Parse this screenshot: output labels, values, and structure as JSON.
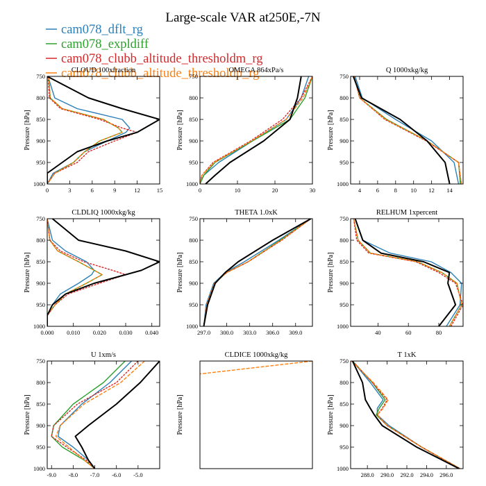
{
  "figure": {
    "title": "Large-scale VAR at250E,-7N",
    "ylabel": "Pressure [hPa]"
  },
  "legend": [
    {
      "name": "cam078_dflt_rg",
      "color": "#2b7fb6"
    },
    {
      "name": "cam078_expldiff",
      "color": "#2ca02c"
    },
    {
      "name": "cam078_clubb_altitude_thresholdm_rg",
      "color": "#d62728"
    },
    {
      "name": "cam078_clubb_altitude_thresholdp_rg",
      "color": "#ff7f0e"
    }
  ],
  "chart_data": [
    {
      "type": "line",
      "title": "CLOUD 100xfraction",
      "ylabel": "Pressure [hPa]",
      "xlim": [
        0,
        15
      ],
      "ylim": [
        750,
        1000
      ],
      "xticks": [
        "0",
        "3",
        "6",
        "9",
        "12",
        "15"
      ],
      "yticks": [
        "750",
        "800",
        "850",
        "900",
        "950",
        "1000"
      ],
      "y": [
        750,
        800,
        825,
        850,
        870,
        880,
        900,
        925,
        950,
        975,
        1000
      ],
      "series": [
        {
          "name": "cam078_dflt_rg",
          "x": [
            0.1,
            1.0,
            4.0,
            10.0,
            11.0,
            10.5,
            8.0,
            5.0,
            3.5,
            0.8,
            0.0
          ]
        },
        {
          "name": "cam078_expldiff",
          "x": [
            0.2,
            0.4,
            2.0,
            7.5,
            9.5,
            10.0,
            7.0,
            5.0,
            3.5,
            1.0,
            0.0
          ]
        },
        {
          "name": "cam078_clubb_altitude_thresholdm_rg",
          "x": [
            0.1,
            0.3,
            1.8,
            7.0,
            10.0,
            12.0,
            9.0,
            5.5,
            4.0,
            1.0,
            0.0
          ]
        },
        {
          "name": "cam078_clubb_altitude_thresholdp_rg",
          "x": [
            0.2,
            0.4,
            2.0,
            7.5,
            9.5,
            10.0,
            7.0,
            5.0,
            3.5,
            1.0,
            0.0
          ]
        },
        {
          "name": "",
          "x": [
            0.0,
            5.5,
            10.0,
            15.0,
            13.0,
            12.0,
            8.0,
            4.0,
            2.0,
            0.0,
            0.0
          ]
        }
      ]
    },
    {
      "type": "line",
      "title": "OMEGA 864xPa/s",
      "ylabel": "Pressure [hPa]",
      "xlim": [
        0,
        30
      ],
      "ylim": [
        750,
        1000
      ],
      "xticks": [
        "0",
        "10",
        "20",
        "30"
      ],
      "yticks": [
        "750",
        "800",
        "850",
        "900",
        "950",
        "1000"
      ],
      "y": [
        750,
        800,
        850,
        900,
        950,
        980,
        1000
      ],
      "series": [
        {
          "name": "cam078_dflt_rg",
          "x": [
            29.0,
            27.0,
            23.0,
            14.0,
            5.0,
            1.0,
            0.0
          ]
        },
        {
          "name": "cam078_expldiff",
          "x": [
            30.0,
            28.0,
            24.0,
            14.0,
            4.0,
            1.0,
            0.0
          ]
        },
        {
          "name": "cam078_clubb_altitude_thresholdm_rg",
          "x": [
            30.0,
            27.0,
            22.0,
            13.5,
            3.5,
            0.5,
            0.0
          ]
        },
        {
          "name": "cam078_clubb_altitude_thresholdp_rg",
          "x": [
            30.0,
            27.5,
            23.0,
            13.8,
            3.8,
            0.5,
            0.0
          ]
        },
        {
          "name": "",
          "x": [
            27.0,
            26.0,
            24.0,
            17.0,
            8.0,
            4.0,
            1.5
          ]
        }
      ]
    },
    {
      "type": "line",
      "title": "Q 1000xkg/kg",
      "ylabel": "Pressure [hPa]",
      "xlim": [
        3,
        15.5
      ],
      "ylim": [
        750,
        1000
      ],
      "xticks": [
        "4",
        "6",
        "8",
        "10",
        "12",
        "14"
      ],
      "yticks": [
        "750",
        "800",
        "850",
        "900",
        "950",
        "1000"
      ],
      "y": [
        750,
        800,
        850,
        900,
        950,
        1000
      ],
      "series": [
        {
          "name": "cam078_dflt_rg",
          "x": [
            3.5,
            4.3,
            8.0,
            12.0,
            14.5,
            15.0
          ]
        },
        {
          "name": "cam078_expldiff",
          "x": [
            3.4,
            4.0,
            7.0,
            11.5,
            15.0,
            15.2
          ]
        },
        {
          "name": "cam078_clubb_altitude_thresholdm_rg",
          "x": [
            3.4,
            4.0,
            6.8,
            11.4,
            15.0,
            15.3
          ]
        },
        {
          "name": "cam078_clubb_altitude_thresholdp_rg",
          "x": [
            3.4,
            4.0,
            6.9,
            11.5,
            15.0,
            15.3
          ]
        },
        {
          "name": "",
          "x": [
            3.3,
            4.2,
            8.5,
            11.5,
            13.5,
            14.0
          ]
        }
      ]
    },
    {
      "type": "line",
      "title": "CLDLIQ 1000xkg/kg",
      "ylabel": "Pressure [hPa]",
      "xlim": [
        0,
        0.043
      ],
      "ylim": [
        750,
        1000
      ],
      "xticks": [
        "0.000",
        "0.010",
        "0.020",
        "0.030",
        "0.040"
      ],
      "yticks": [
        "750",
        "800",
        "850",
        "900",
        "950",
        "1000"
      ],
      "y": [
        750,
        800,
        825,
        850,
        870,
        880,
        900,
        925,
        950,
        975,
        1000
      ],
      "series": [
        {
          "name": "cam078_dflt_rg",
          "x": [
            0.0,
            0.002,
            0.007,
            0.015,
            0.018,
            0.017,
            0.012,
            0.005,
            0.002,
            0.0,
            0.0
          ]
        },
        {
          "name": "cam078_expldiff",
          "x": [
            0.0,
            0.001,
            0.004,
            0.012,
            0.018,
            0.021,
            0.015,
            0.007,
            0.003,
            0.0,
            0.0
          ]
        },
        {
          "name": "cam078_clubb_altitude_thresholdm_rg",
          "x": [
            0.0,
            0.001,
            0.005,
            0.014,
            0.025,
            0.03,
            0.02,
            0.008,
            0.003,
            0.0,
            0.0
          ]
        },
        {
          "name": "cam078_clubb_altitude_thresholdp_rg",
          "x": [
            0.0,
            0.001,
            0.004,
            0.012,
            0.018,
            0.021,
            0.015,
            0.007,
            0.003,
            0.0,
            0.0
          ]
        },
        {
          "name": "",
          "x": [
            0.002,
            0.012,
            0.03,
            0.043,
            0.036,
            0.03,
            0.018,
            0.007,
            0.002,
            0.0,
            0.0
          ]
        }
      ]
    },
    {
      "type": "line",
      "title": "THETA 1.0xK",
      "ylabel": "Pressure [hPa]",
      "xlim": [
        296.5,
        311.2
      ],
      "ylim": [
        750,
        1000
      ],
      "xticks": [
        "297.0",
        "300.0",
        "303.0",
        "306.0",
        "309.0"
      ],
      "yticks": [
        "750",
        "800",
        "850",
        "900",
        "950",
        "1000"
      ],
      "y": [
        750,
        800,
        850,
        875,
        900,
        950,
        1000
      ],
      "series": [
        {
          "name": "cam078_dflt_rg",
          "x": [
            311.0,
            306.8,
            302.3,
            299.8,
            298.3,
            297.3,
            297.0
          ]
        },
        {
          "name": "cam078_expldiff",
          "x": [
            311.0,
            307.0,
            302.8,
            300.0,
            298.4,
            297.4,
            297.0
          ]
        },
        {
          "name": "cam078_clubb_altitude_thresholdm_rg",
          "x": [
            311.0,
            307.2,
            302.8,
            300.0,
            298.4,
            297.4,
            297.0
          ]
        },
        {
          "name": "cam078_clubb_altitude_thresholdp_rg",
          "x": [
            311.0,
            307.1,
            302.8,
            300.0,
            298.4,
            297.4,
            297.0
          ]
        },
        {
          "name": "",
          "x": [
            311.0,
            306.0,
            301.5,
            299.8,
            298.5,
            297.5,
            297.0
          ]
        }
      ]
    },
    {
      "type": "line",
      "title": "RELHUM 1xpercent",
      "ylabel": "Pressure [hPa]",
      "xlim": [
        22,
        96
      ],
      "ylim": [
        750,
        1000
      ],
      "xticks": [
        "40",
        "60",
        "80"
      ],
      "yticks": [
        "750",
        "800",
        "850",
        "900",
        "950",
        "1000"
      ],
      "y": [
        750,
        800,
        830,
        850,
        875,
        900,
        950,
        1000
      ],
      "series": [
        {
          "name": "cam078_dflt_rg",
          "x": [
            25.0,
            30.0,
            48.0,
            75.0,
            88.0,
            95.0,
            94.0,
            85.0
          ]
        },
        {
          "name": "cam078_expldiff",
          "x": [
            24.0,
            27.0,
            35.0,
            66.0,
            82.0,
            92.0,
            95.0,
            87.0
          ]
        },
        {
          "name": "cam078_clubb_altitude_thresholdm_rg",
          "x": [
            24.0,
            26.0,
            34.0,
            65.0,
            80.0,
            91.0,
            96.0,
            88.0
          ]
        },
        {
          "name": "cam078_clubb_altitude_thresholdp_rg",
          "x": [
            24.0,
            27.0,
            35.0,
            66.0,
            82.0,
            92.0,
            95.0,
            87.0
          ]
        },
        {
          "name": "",
          "x": [
            25.0,
            30.0,
            42.0,
            70.0,
            87.0,
            86.0,
            91.0,
            80.0
          ]
        }
      ]
    },
    {
      "type": "line",
      "title": "U 1xm/s",
      "ylabel": "Pressure [hPa]",
      "xlim": [
        -9.2,
        -4.0
      ],
      "ylim": [
        750,
        1000
      ],
      "xticks": [
        "-9.0",
        "-8.0",
        "-7.0",
        "-6.0",
        "-5.0"
      ],
      "yticks": [
        "750",
        "800",
        "850",
        "900",
        "950",
        "1000"
      ],
      "y": [
        750,
        800,
        850,
        900,
        925,
        950,
        980,
        1000
      ],
      "series": [
        {
          "name": "cam078_dflt_rg",
          "x": [
            -5.3,
            -6.3,
            -7.6,
            -8.6,
            -8.7,
            -8.0,
            -7.3,
            -7.0
          ]
        },
        {
          "name": "cam078_expldiff",
          "x": [
            -5.6,
            -6.6,
            -8.0,
            -8.9,
            -9.0,
            -8.5,
            -7.5,
            -7.0
          ]
        },
        {
          "name": "cam078_clubb_altitude_thresholdm_rg",
          "x": [
            -5.0,
            -6.0,
            -7.8,
            -8.9,
            -9.0,
            -8.3,
            -7.4,
            -7.0
          ]
        },
        {
          "name": "cam078_clubb_altitude_thresholdp_rg",
          "x": [
            -4.7,
            -5.8,
            -7.5,
            -8.6,
            -8.8,
            -8.2,
            -7.5,
            -7.0
          ]
        },
        {
          "name": "",
          "x": [
            -4.0,
            -4.9,
            -6.0,
            -7.3,
            -7.9,
            -7.6,
            -7.3,
            -7.0
          ]
        }
      ]
    },
    {
      "type": "line",
      "title": "CLDICE 1000xkg/kg",
      "ylabel": "Pressure [hPa]",
      "xlim": [
        0,
        1
      ],
      "ylim": [
        750,
        1000
      ],
      "xticks": [],
      "yticks": [],
      "y": [
        750,
        780
      ],
      "series": [
        {
          "name": "cam078_clubb_altitude_thresholdp_rg",
          "x": [
            1.0,
            0.0
          ]
        }
      ]
    },
    {
      "type": "line",
      "title": "T 1xK",
      "ylabel": "Pressure [hPa]",
      "xlim": [
        286.3,
        297.7
      ],
      "ylim": [
        750,
        1000
      ],
      "xticks": [
        "288.0",
        "290.0",
        "292.0",
        "294.0",
        "296.0"
      ],
      "yticks": [
        "750",
        "800",
        "850",
        "900",
        "950",
        "1000"
      ],
      "y": [
        750,
        800,
        840,
        860,
        875,
        900,
        950,
        1000
      ],
      "series": [
        {
          "name": "cam078_dflt_rg",
          "x": [
            286.5,
            288.3,
            289.6,
            289.0,
            289.0,
            290.2,
            293.5,
            297.3
          ]
        },
        {
          "name": "cam078_expldiff",
          "x": [
            286.5,
            288.5,
            289.8,
            289.2,
            288.9,
            290.0,
            293.5,
            297.4
          ]
        },
        {
          "name": "cam078_clubb_altitude_thresholdm_rg",
          "x": [
            286.5,
            288.5,
            290.0,
            289.5,
            289.0,
            290.0,
            293.5,
            297.4
          ]
        },
        {
          "name": "cam078_clubb_altitude_thresholdp_rg",
          "x": [
            286.4,
            288.6,
            290.1,
            289.6,
            289.0,
            290.0,
            293.5,
            297.4
          ]
        },
        {
          "name": "",
          "x": [
            286.5,
            287.5,
            287.8,
            288.3,
            288.7,
            289.5,
            293.0,
            297.3
          ]
        }
      ]
    }
  ]
}
